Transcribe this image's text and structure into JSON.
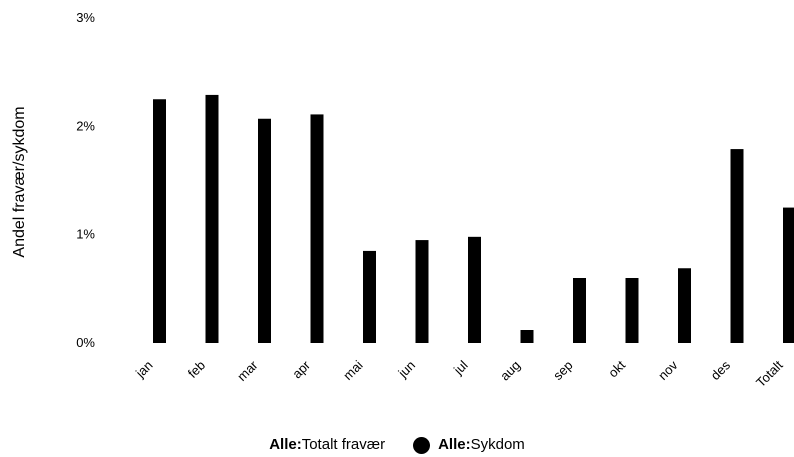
{
  "chart_data": {
    "type": "bar",
    "ylabel": "Andel fravær/sykdom",
    "ylim": [
      0,
      3
    ],
    "yticks": [
      "0%",
      "1%",
      "2%",
      "3%"
    ],
    "categories": [
      "jan",
      "feb",
      "mar",
      "apr",
      "mai",
      "jun",
      "jul",
      "aug",
      "sep",
      "okt",
      "nov",
      "des",
      "Totalt"
    ],
    "series": [
      {
        "name_group": "Alle:",
        "name_label": "Totalt fravær",
        "color": "#000000",
        "values": [
          2.25,
          2.29,
          2.07,
          2.11,
          0.85,
          0.95,
          0.98,
          0.12,
          0.6,
          0.6,
          0.69,
          1.79,
          1.25
        ]
      },
      {
        "name_group": "Alle:",
        "name_label": "Sykdom",
        "color": "#000000",
        "values": [
          0,
          0,
          0,
          0,
          0,
          0,
          0,
          0,
          0,
          0,
          0,
          0,
          0
        ]
      }
    ],
    "legend_position": "bottom",
    "grid": false
  }
}
